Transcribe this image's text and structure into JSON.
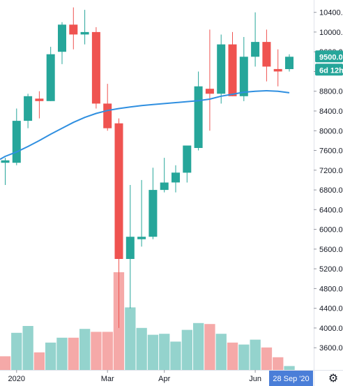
{
  "chart_data": {
    "type": "candlestick",
    "interval": "weekly",
    "y_axis": {
      "ticks": [
        3600,
        4000,
        4400,
        4800,
        5200,
        5600,
        6000,
        6400,
        6800,
        7200,
        7600,
        8000,
        8400,
        8800,
        9200,
        9600,
        10000,
        10400
      ],
      "tick_labels": [
        "3600.00",
        "4000.00",
        "4400.00",
        "4800.00",
        "5200.00",
        "5600.00",
        "6000.00",
        "6400.00",
        "6800.00",
        "7200.00",
        "7600.00",
        "8000.00",
        "8400.00",
        "8800.00",
        "9200.00",
        "9600.00",
        "10000.00",
        "10400.00"
      ],
      "ylim": [
        3150,
        10650
      ]
    },
    "x_axis": {
      "labels": [
        "2020",
        "Mar",
        "Apr",
        "Jun"
      ],
      "label_candle_index": [
        1,
        9,
        14,
        22
      ]
    },
    "candles": [
      {
        "o": 7350,
        "h": 7450,
        "l": 6900,
        "c": 7400
      },
      {
        "o": 7350,
        "h": 8450,
        "l": 7300,
        "c": 8200
      },
      {
        "o": 8200,
        "h": 8750,
        "l": 8050,
        "c": 8700
      },
      {
        "o": 8650,
        "h": 8800,
        "l": 8250,
        "c": 8600
      },
      {
        "o": 8600,
        "h": 9700,
        "l": 8600,
        "c": 9550
      },
      {
        "o": 9600,
        "h": 10200,
        "l": 9350,
        "c": 10150
      },
      {
        "o": 10150,
        "h": 10500,
        "l": 9650,
        "c": 9950
      },
      {
        "o": 9950,
        "h": 10450,
        "l": 9750,
        "c": 10000
      },
      {
        "o": 10000,
        "h": 10100,
        "l": 8450,
        "c": 8550
      },
      {
        "o": 8550,
        "h": 8950,
        "l": 8000,
        "c": 8050
      },
      {
        "o": 8150,
        "h": 8250,
        "l": 4000,
        "c": 5400
      },
      {
        "o": 5400,
        "h": 6900,
        "l": 4400,
        "c": 5850
      },
      {
        "o": 5800,
        "h": 7000,
        "l": 5650,
        "c": 5850
      },
      {
        "o": 5850,
        "h": 7250,
        "l": 5800,
        "c": 6800
      },
      {
        "o": 6800,
        "h": 7450,
        "l": 6750,
        "c": 6950
      },
      {
        "o": 6950,
        "h": 7300,
        "l": 6750,
        "c": 7150
      },
      {
        "o": 7150,
        "h": 7700,
        "l": 6950,
        "c": 7700
      },
      {
        "o": 7650,
        "h": 9200,
        "l": 7600,
        "c": 8900
      },
      {
        "o": 8850,
        "h": 10050,
        "l": 8000,
        "c": 8750
      },
      {
        "o": 8750,
        "h": 9950,
        "l": 8550,
        "c": 9750
      },
      {
        "o": 9750,
        "h": 10000,
        "l": 8700,
        "c": 8700
      },
      {
        "o": 8700,
        "h": 9900,
        "l": 8600,
        "c": 9500
      },
      {
        "o": 9500,
        "h": 10400,
        "l": 9300,
        "c": 9800
      },
      {
        "o": 9800,
        "h": 10050,
        "l": 9000,
        "c": 9300
      },
      {
        "o": 9250,
        "h": 9650,
        "l": 8900,
        "c": 9200
      },
      {
        "o": 9250,
        "h": 9550,
        "l": 9200,
        "c": 9500
      }
    ],
    "volume": [
      {
        "v": 0.14,
        "up": false
      },
      {
        "v": 0.38,
        "up": true
      },
      {
        "v": 0.45,
        "up": true
      },
      {
        "v": 0.18,
        "up": false
      },
      {
        "v": 0.28,
        "up": true
      },
      {
        "v": 0.33,
        "up": true
      },
      {
        "v": 0.33,
        "up": false
      },
      {
        "v": 0.42,
        "up": true
      },
      {
        "v": 0.39,
        "up": false
      },
      {
        "v": 0.39,
        "up": false
      },
      {
        "v": 1.0,
        "up": false
      },
      {
        "v": 0.64,
        "up": true
      },
      {
        "v": 0.43,
        "up": true
      },
      {
        "v": 0.36,
        "up": true
      },
      {
        "v": 0.37,
        "up": true
      },
      {
        "v": 0.29,
        "up": true
      },
      {
        "v": 0.41,
        "up": true
      },
      {
        "v": 0.48,
        "up": true
      },
      {
        "v": 0.47,
        "up": false
      },
      {
        "v": 0.37,
        "up": true
      },
      {
        "v": 0.28,
        "up": false
      },
      {
        "v": 0.26,
        "up": true
      },
      {
        "v": 0.31,
        "up": true
      },
      {
        "v": 0.23,
        "up": false
      },
      {
        "v": 0.13,
        "up": false
      },
      {
        "v": 0.04,
        "up": true
      }
    ],
    "moving_average": [
      7480,
      7570,
      7680,
      7800,
      7930,
      8050,
      8170,
      8270,
      8350,
      8410,
      8450,
      8480,
      8510,
      8530,
      8550,
      8570,
      8590,
      8610,
      8640,
      8700,
      8740,
      8780,
      8800,
      8810,
      8800,
      8770
    ],
    "last_price_label": "9500.0",
    "last_price_value": 9500,
    "countdown_label": "6d 12h",
    "crosshair_date_label": "28 Sep '20",
    "colors": {
      "up": "#26a69a",
      "down": "#ef5350",
      "up_volume": "#94d3cd",
      "down_volume": "#f5a9a8",
      "moving_average": "#2f8fe0",
      "axis_text": "#131722",
      "badge_last_price": "#26a69a",
      "badge_countdown": "#26a69a",
      "badge_date": "#4a7ed8"
    }
  },
  "ui": {
    "settings_icon": "gear-icon"
  }
}
